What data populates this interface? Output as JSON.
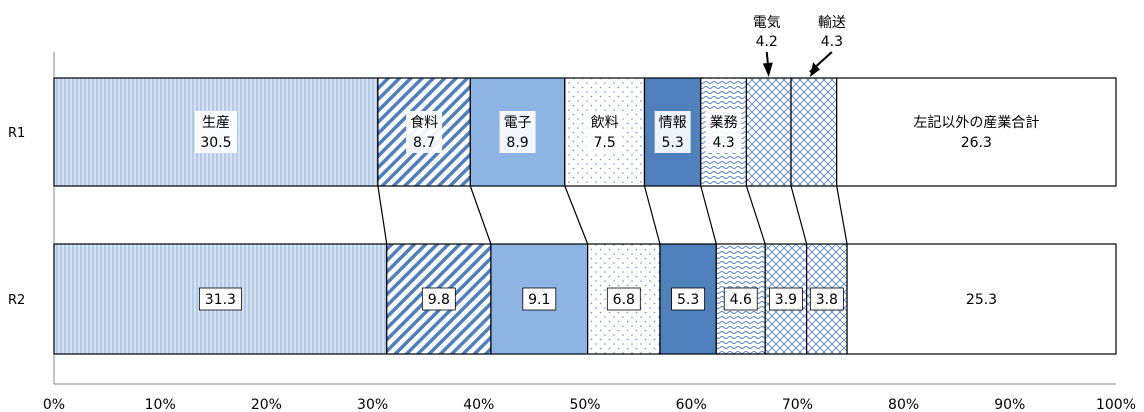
{
  "chart_data": {
    "type": "bar",
    "stacked": "100%",
    "orientation": "horizontal",
    "categories": [
      "R1",
      "R2"
    ],
    "series": [
      {
        "name": "生産",
        "values": [
          30.5,
          31.3
        ],
        "pattern": "vlines-blue-light"
      },
      {
        "name": "食料",
        "values": [
          8.7,
          9.8
        ],
        "pattern": "diag-blue"
      },
      {
        "name": "電子",
        "values": [
          8.9,
          9.1
        ],
        "pattern": "solid",
        "color": "#8eb4e3"
      },
      {
        "name": "飲料",
        "values": [
          7.5,
          6.8
        ],
        "pattern": "dots"
      },
      {
        "name": "情報",
        "values": [
          5.3,
          5.3
        ],
        "pattern": "solid",
        "color": "#4f81bd"
      },
      {
        "name": "業務",
        "values": [
          4.3,
          4.6
        ],
        "pattern": "waves"
      },
      {
        "name": "電気",
        "values": [
          4.2,
          3.9
        ],
        "pattern": "crosshatch"
      },
      {
        "name": "輸送",
        "values": [
          4.3,
          3.8
        ],
        "pattern": "crosshatch"
      },
      {
        "name": "左記以外の産業合計",
        "values": [
          26.3,
          25.3
        ],
        "pattern": "none"
      }
    ],
    "row1_labels": [
      "生産\n30.5",
      "食料\n8.7",
      "電子\n8.9",
      "飲料\n7.5",
      "情報\n5.3",
      "業務\n4.3",
      "",
      "",
      "左記以外の産業合計\n26.3"
    ],
    "callouts": [
      {
        "series_index": 6,
        "name": "電気",
        "value": "4.2"
      },
      {
        "series_index": 7,
        "name": "輸送",
        "value": "4.3"
      }
    ],
    "x_ticks": [
      "0%",
      "10%",
      "20%",
      "30%",
      "40%",
      "50%",
      "60%",
      "70%",
      "80%",
      "90%",
      "100%"
    ],
    "xlim": [
      0,
      100
    ],
    "legend": "none",
    "grid": false
  }
}
